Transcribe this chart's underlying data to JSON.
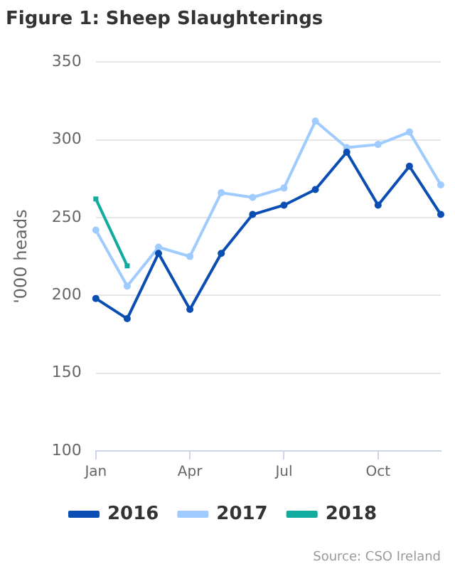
{
  "chart_data": {
    "type": "line",
    "title": "Figure 1: Sheep Slaughterings",
    "ylabel": "'000 heads",
    "annotations": [
      "Source: CSO Ireland"
    ],
    "categories": [
      "Jan",
      null,
      null,
      "Apr",
      null,
      null,
      "Jul",
      null,
      null,
      "Oct",
      null,
      null
    ],
    "series": [
      {
        "name": "2016",
        "color": "#0b4eb3",
        "marker": "circle",
        "values": [
          198,
          185,
          227,
          191,
          227,
          252,
          258,
          268,
          292,
          258,
          283,
          252
        ]
      },
      {
        "name": "2017",
        "color": "#9fcbff",
        "marker": "circle",
        "values": [
          242,
          206,
          231,
          225,
          266,
          263,
          269,
          312,
          295,
          297,
          305,
          271
        ]
      },
      {
        "name": "2018",
        "color": "#12ab9f",
        "marker": "square",
        "values": [
          262,
          219,
          null,
          null,
          null,
          null,
          null,
          null,
          null,
          null,
          null,
          null
        ]
      }
    ],
    "ylim": [
      100,
      350
    ],
    "yticks": [
      100,
      150,
      200,
      250,
      300,
      350
    ],
    "grid": "y",
    "legend": "bottom"
  }
}
